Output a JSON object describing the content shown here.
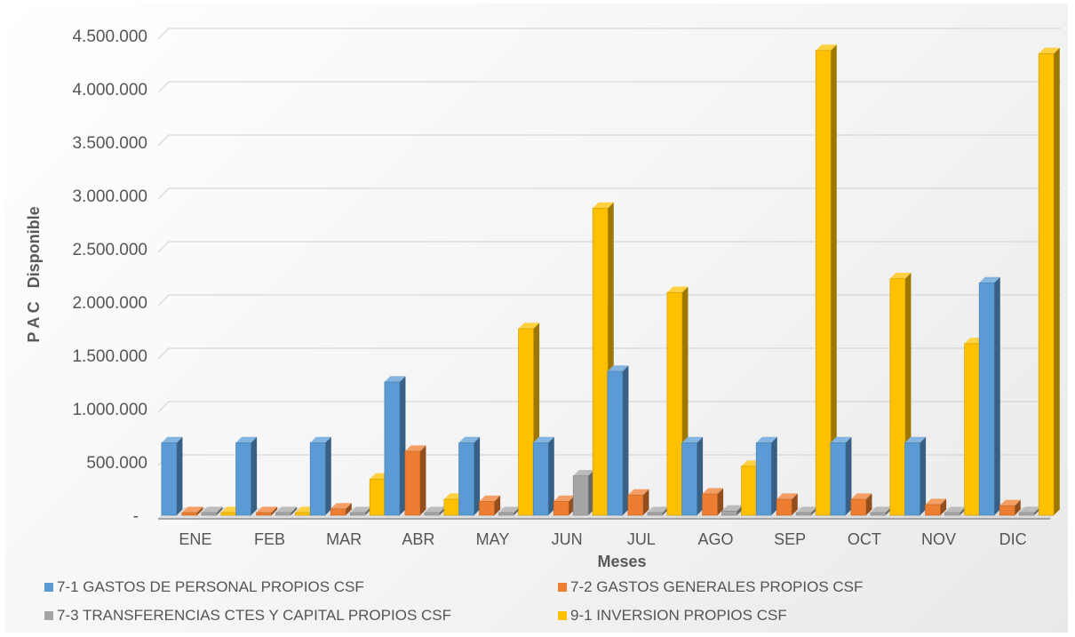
{
  "chart_data": {
    "type": "bar",
    "style": "3d-clustered-column",
    "title": "",
    "xlabel": "Meses",
    "ylabel": "P A C   Disponible",
    "ylim": [
      0,
      4500000
    ],
    "yticks": [
      0,
      500000,
      1000000,
      1500000,
      2000000,
      2500000,
      3000000,
      3500000,
      4000000,
      4500000
    ],
    "ytick_labels": [
      "-",
      "500.000",
      "1.000.000",
      "1.500.000",
      "2.000.000",
      "2.500.000",
      "3.000.000",
      "3.500.000",
      "4.000.000",
      "4.500.000"
    ],
    "grid": true,
    "legend_position": "bottom",
    "categories": [
      "ENE",
      "FEB",
      "MAR",
      "ABR",
      "MAY",
      "JUN",
      "JUL",
      "AGO",
      "SEP",
      "OCT",
      "NOV",
      "DIC"
    ],
    "series": [
      {
        "name": "7-1 GASTOS DE PERSONAL PROPIOS CSF",
        "color": "#5b9bd5",
        "values": [
          680000,
          680000,
          680000,
          1250000,
          680000,
          680000,
          1350000,
          680000,
          680000,
          680000,
          680000,
          2180000
        ]
      },
      {
        "name": "7-2 GASTOS GENERALES PROPIOS CSF",
        "color": "#ed7d31",
        "values": [
          10000,
          10000,
          60000,
          600000,
          130000,
          130000,
          190000,
          200000,
          150000,
          150000,
          100000,
          90000
        ]
      },
      {
        "name": "7-3 TRANSFERENCIAS CTES  Y CAPITAL PROPIOS CSF",
        "color": "#a5a5a5",
        "values": [
          0,
          0,
          0,
          0,
          0,
          370000,
          0,
          40000,
          0,
          0,
          0,
          0
        ]
      },
      {
        "name": "9-1 INVERSION PROPIOS CSF",
        "color": "#ffc000",
        "values": [
          0,
          20000,
          340000,
          150000,
          1750000,
          2880000,
          2090000,
          460000,
          4360000,
          2220000,
          1610000,
          4330000
        ]
      }
    ]
  }
}
